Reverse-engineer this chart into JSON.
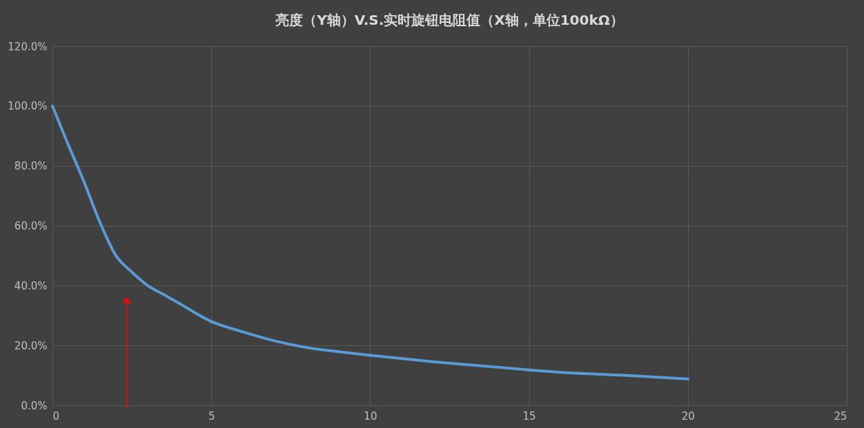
{
  "chart_data": {
    "type": "line",
    "title": "亮度（Y轴）V.S.实时旋钮电阻值（X轴，单位100kΩ）",
    "x": [
      0,
      0.5,
      1,
      1.5,
      2,
      2.5,
      3,
      3.5,
      4,
      5,
      6,
      7,
      8,
      9,
      10,
      12,
      14,
      15,
      16,
      18,
      20
    ],
    "series": [
      {
        "color": "#5b9bd5",
        "values": [
          100,
          87,
          74.5,
          61,
          50,
          44.5,
          40,
          37,
          34,
          28,
          24.5,
          21.5,
          19.3,
          17.9,
          16.7,
          14.5,
          12.7,
          11.8,
          11,
          10,
          8.8
        ]
      }
    ],
    "xlim": [
      0,
      25
    ],
    "xticks": [
      0,
      5,
      10,
      15,
      20,
      25
    ],
    "ylim": [
      0,
      120
    ],
    "yticks": [
      {
        "value": 0,
        "label": "0.0%"
      },
      {
        "value": 20,
        "label": "20.0%"
      },
      {
        "value": 40,
        "label": "40.0%"
      },
      {
        "value": 60,
        "label": "60.0%"
      },
      {
        "value": 80,
        "label": "80.0%"
      },
      {
        "value": 100,
        "label": "100.0%"
      },
      {
        "value": 120,
        "label": "120.0%"
      }
    ],
    "grid": true,
    "marker": "none",
    "line_style": "solid",
    "legend": false
  }
}
